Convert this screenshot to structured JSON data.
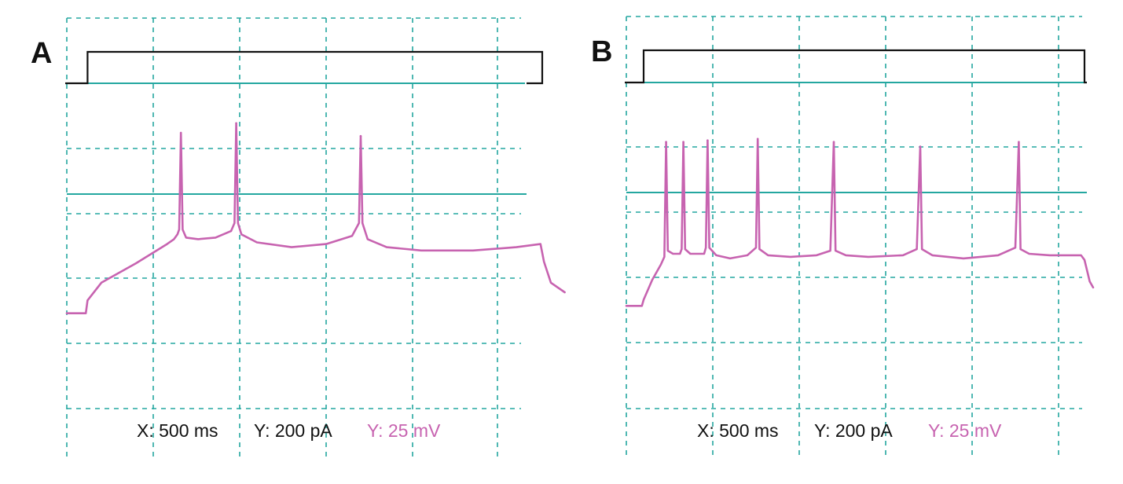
{
  "colors": {
    "grid": "#24a7a0",
    "stimulus": "#111111",
    "voltage": "#c763b0",
    "scale_text": "#111111",
    "voltage_scale_text": "#c763b0"
  },
  "chart_data": [
    {
      "type": "line",
      "panel_label": "A",
      "scale_bar": {
        "x_label": "X: 500 ms",
        "y_current_label": "Y: 200 pA",
        "y_voltage_label": "Y: 25 mV"
      },
      "grid": true,
      "stimulus": {
        "name": "",
        "step_on_ms": 120,
        "step_off_ms": 2750,
        "amplitude_pA": 200
      },
      "voltage": {
        "name": "",
        "spike_times_ms": [
          660,
          980,
          1700
        ],
        "spike_peaks_mV": [
          38,
          44,
          36
        ],
        "trace_points": [
          [
            0,
            -74
          ],
          [
            110,
            -74
          ],
          [
            120,
            -66
          ],
          [
            200,
            -55
          ],
          [
            400,
            -43
          ],
          [
            580,
            -31
          ],
          [
            620,
            -28
          ],
          [
            640,
            -25
          ],
          [
            650,
            -22
          ],
          [
            660,
            38
          ],
          [
            670,
            -22
          ],
          [
            690,
            -27
          ],
          [
            760,
            -28
          ],
          [
            860,
            -27
          ],
          [
            950,
            -23
          ],
          [
            970,
            -18
          ],
          [
            980,
            44
          ],
          [
            990,
            -18
          ],
          [
            1010,
            -25
          ],
          [
            1100,
            -30
          ],
          [
            1300,
            -33
          ],
          [
            1500,
            -31
          ],
          [
            1650,
            -26
          ],
          [
            1690,
            -18
          ],
          [
            1700,
            36
          ],
          [
            1710,
            -18
          ],
          [
            1740,
            -28
          ],
          [
            1850,
            -33
          ],
          [
            2050,
            -35
          ],
          [
            2350,
            -35
          ],
          [
            2600,
            -33
          ],
          [
            2740,
            -31
          ],
          [
            2760,
            -42
          ],
          [
            2800,
            -55
          ],
          [
            2880,
            -61
          ]
        ]
      }
    },
    {
      "type": "line",
      "panel_label": "B",
      "scale_bar": {
        "x_label": "X: 500 ms",
        "y_current_label": "Y: 200 pA",
        "y_voltage_label": "Y: 25 mV"
      },
      "grid": true,
      "stimulus": {
        "name": "",
        "step_on_ms": 100,
        "step_off_ms": 2650,
        "amplitude_pA": 200
      },
      "voltage": {
        "name": "",
        "spike_times_ms": [
          230,
          330,
          470,
          760,
          1200,
          1700,
          2270
        ],
        "spike_peaks_mV": [
          33,
          33,
          34,
          35,
          33,
          30,
          33
        ],
        "trace_points": [
          [
            0,
            -74
          ],
          [
            90,
            -74
          ],
          [
            100,
            -70
          ],
          [
            150,
            -57
          ],
          [
            200,
            -47
          ],
          [
            220,
            -42
          ],
          [
            230,
            33
          ],
          [
            240,
            -38
          ],
          [
            270,
            -40
          ],
          [
            310,
            -40
          ],
          [
            320,
            -37
          ],
          [
            330,
            33
          ],
          [
            340,
            -37
          ],
          [
            370,
            -40
          ],
          [
            450,
            -40
          ],
          [
            460,
            -36
          ],
          [
            470,
            34
          ],
          [
            480,
            -36
          ],
          [
            520,
            -41
          ],
          [
            600,
            -43
          ],
          [
            700,
            -41
          ],
          [
            750,
            -36
          ],
          [
            760,
            35
          ],
          [
            770,
            -37
          ],
          [
            820,
            -41
          ],
          [
            950,
            -42
          ],
          [
            1100,
            -41
          ],
          [
            1180,
            -38
          ],
          [
            1200,
            33
          ],
          [
            1210,
            -38
          ],
          [
            1270,
            -41
          ],
          [
            1400,
            -42
          ],
          [
            1600,
            -41
          ],
          [
            1680,
            -37
          ],
          [
            1700,
            30
          ],
          [
            1710,
            -37
          ],
          [
            1770,
            -41
          ],
          [
            1950,
            -43
          ],
          [
            2150,
            -41
          ],
          [
            2250,
            -36
          ],
          [
            2270,
            33
          ],
          [
            2280,
            -37
          ],
          [
            2330,
            -40
          ],
          [
            2450,
            -41
          ],
          [
            2630,
            -41
          ],
          [
            2650,
            -44
          ],
          [
            2680,
            -58
          ],
          [
            2700,
            -62
          ]
        ]
      }
    }
  ]
}
